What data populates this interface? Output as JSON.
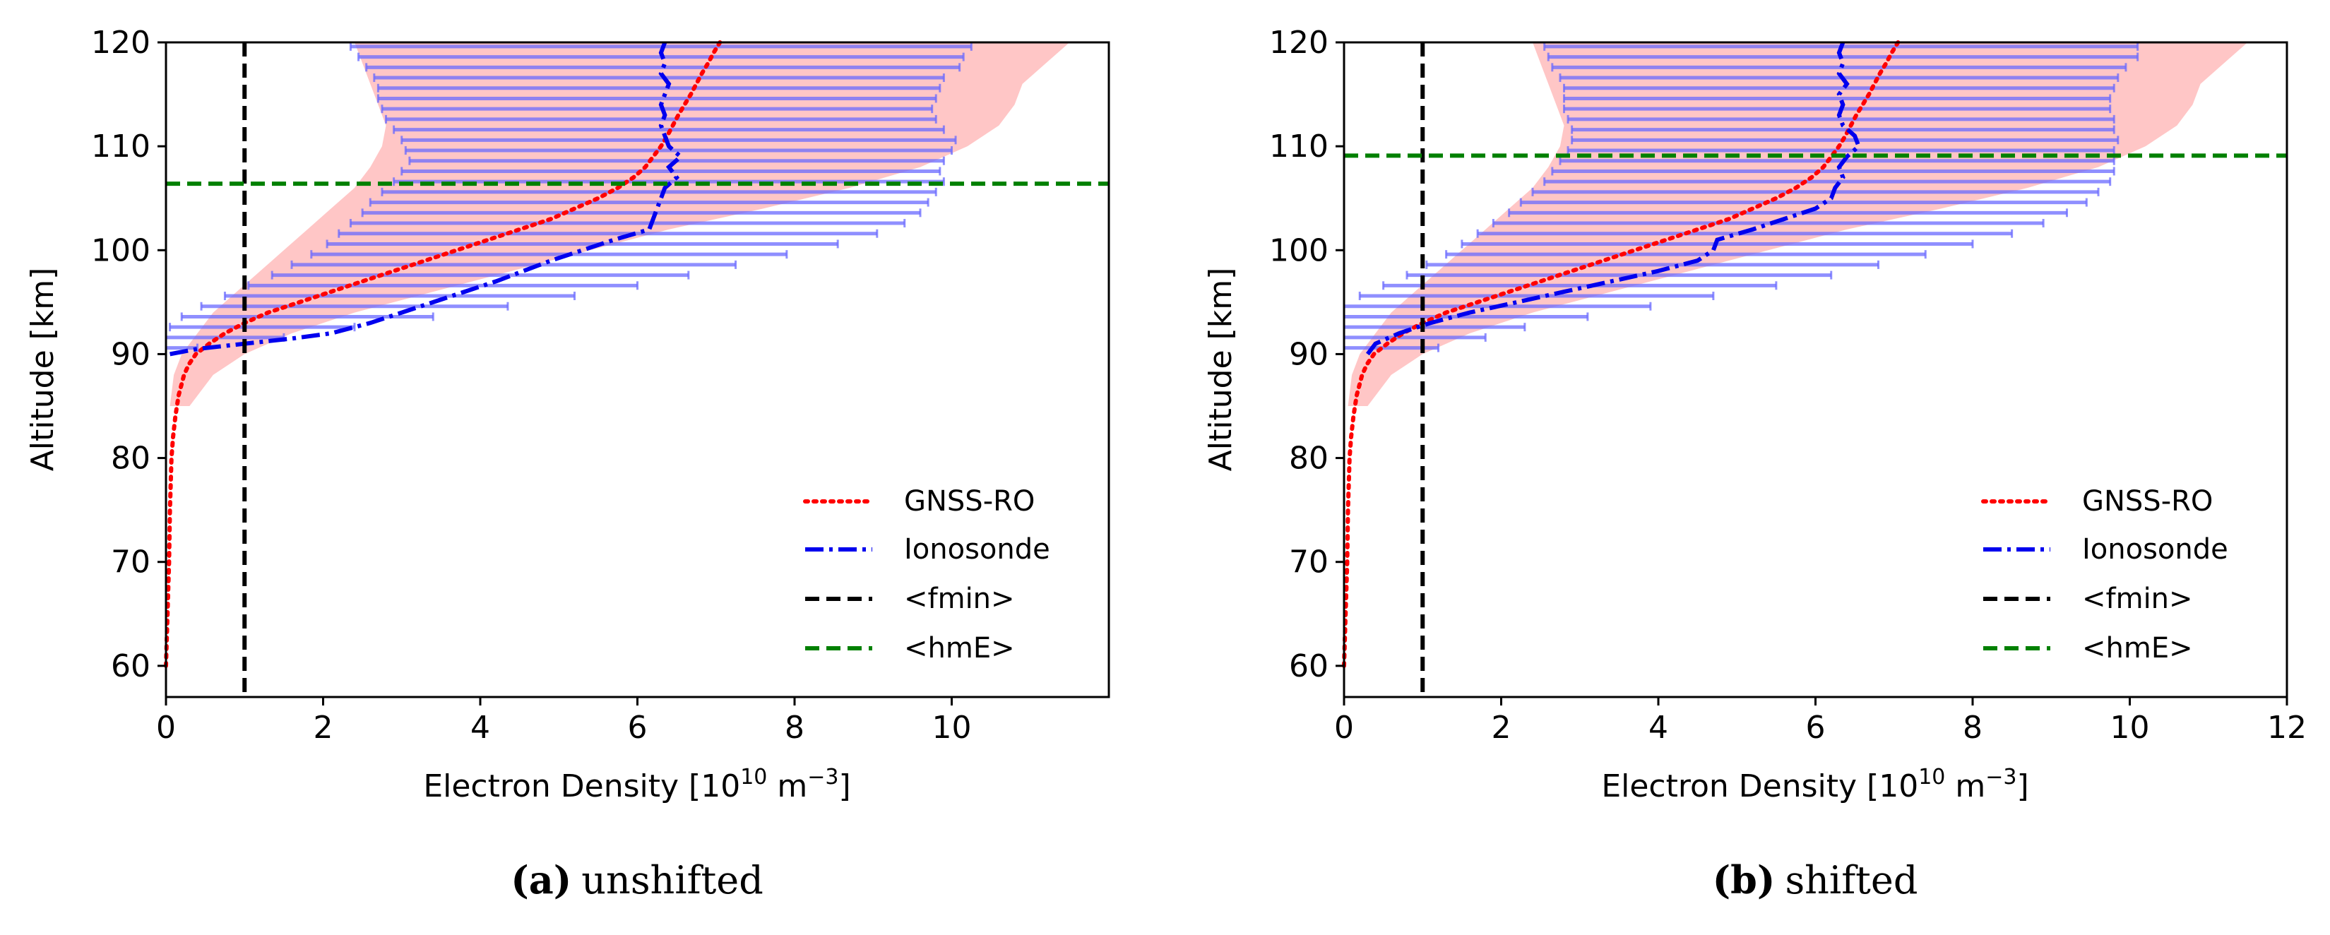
{
  "charts": [
    {
      "type": "line",
      "panel_label": "(a)",
      "caption": "unshifted",
      "xlabel": "Electron Density [10",
      "xlabel_sup": "10",
      "xlabel_unit": " m",
      "xlabel_unit_sup": "−3",
      "xlabel_close": "]",
      "ylabel": "Altitude [km]",
      "xlim": [
        0,
        12
      ],
      "ylim": [
        57,
        120
      ],
      "xticks": [
        0,
        2,
        4,
        6,
        8,
        10
      ],
      "yticks": [
        60,
        70,
        80,
        90,
        100,
        110,
        120
      ],
      "fmin": 1.0,
      "hmE": 106.4,
      "legend": [
        "GNSS-RO",
        "Ionosonde",
        "<fmin>",
        "<hmE>"
      ],
      "legend_position": "lower-right",
      "gnss_ro": {
        "y": [
          60,
          65,
          70,
          75,
          80,
          82,
          84,
          86,
          88,
          89,
          90,
          91,
          92,
          93,
          94,
          95,
          96,
          97,
          98,
          99,
          100,
          101,
          102,
          103,
          104,
          105,
          106,
          107,
          108,
          109,
          110,
          111,
          112,
          113,
          114,
          115,
          116,
          117,
          118,
          119,
          120
        ],
        "x": [
          0.0,
          0.02,
          0.04,
          0.05,
          0.07,
          0.09,
          0.12,
          0.16,
          0.23,
          0.29,
          0.38,
          0.55,
          0.75,
          1.0,
          1.3,
          1.7,
          2.1,
          2.5,
          2.9,
          3.3,
          3.7,
          4.1,
          4.5,
          4.9,
          5.2,
          5.5,
          5.75,
          5.95,
          6.1,
          6.2,
          6.3,
          6.38,
          6.45,
          6.52,
          6.6,
          6.68,
          6.75,
          6.82,
          6.9,
          6.97,
          7.05
        ]
      },
      "gnss_band": {
        "y": [
          85,
          88,
          90,
          92,
          94,
          96,
          98,
          100,
          102,
          104,
          106,
          108,
          110,
          112,
          114,
          116,
          118,
          120
        ],
        "low": [
          0.05,
          0.1,
          0.2,
          0.4,
          0.6,
          0.9,
          1.2,
          1.5,
          1.8,
          2.1,
          2.4,
          2.6,
          2.75,
          2.8,
          2.7,
          2.6,
          2.5,
          2.4
        ],
        "high": [
          0.3,
          0.6,
          1.0,
          1.6,
          2.4,
          3.4,
          4.4,
          5.4,
          6.4,
          7.6,
          8.7,
          9.6,
          10.2,
          10.6,
          10.8,
          10.9,
          11.2,
          11.5
        ]
      },
      "ionosonde": {
        "y": [
          90,
          90.5,
          91,
          91.5,
          92,
          93,
          94,
          95,
          96,
          97,
          98,
          99,
          100,
          101,
          102,
          103,
          104,
          105,
          106,
          107,
          108,
          109,
          110,
          111,
          112,
          113,
          114,
          115,
          116,
          117,
          118,
          119,
          120
        ],
        "x": [
          0.05,
          0.4,
          1.0,
          1.6,
          2.1,
          2.6,
          3.0,
          3.4,
          3.8,
          4.2,
          4.55,
          4.9,
          5.3,
          5.7,
          6.15,
          6.2,
          6.25,
          6.3,
          6.35,
          6.5,
          6.4,
          6.55,
          6.4,
          6.35,
          6.3,
          6.35,
          6.3,
          6.35,
          6.4,
          6.3,
          6.35,
          6.3,
          6.35
        ]
      },
      "ionosonde_bars": {
        "y": [
          90.6,
          91.6,
          92.6,
          93.6,
          94.6,
          95.6,
          96.6,
          97.6,
          98.6,
          99.6,
          100.6,
          101.6,
          102.6,
          103.6,
          104.6,
          105.6,
          106.6,
          107.6,
          108.6,
          109.6,
          110.6,
          111.6,
          112.6,
          113.6,
          114.6,
          115.6,
          116.6,
          117.6,
          118.6,
          119.6
        ],
        "low": [
          0.0,
          0.0,
          0.05,
          0.2,
          0.45,
          0.75,
          1.05,
          1.35,
          1.6,
          1.85,
          2.05,
          2.2,
          2.35,
          2.5,
          2.6,
          2.75,
          2.9,
          3.0,
          3.1,
          3.05,
          3.0,
          2.9,
          2.8,
          2.75,
          2.7,
          2.7,
          2.65,
          2.55,
          2.45,
          2.35
        ],
        "high": [
          0.4,
          1.5,
          2.4,
          3.4,
          4.35,
          5.2,
          6.0,
          6.65,
          7.25,
          7.9,
          8.55,
          9.05,
          9.4,
          9.6,
          9.7,
          9.8,
          9.9,
          9.85,
          9.9,
          10.0,
          10.05,
          9.9,
          9.8,
          9.75,
          9.8,
          9.85,
          9.9,
          10.1,
          10.15,
          10.25
        ]
      }
    },
    {
      "type": "line",
      "panel_label": "(b)",
      "caption": "shifted",
      "xlabel": "Electron Density [10",
      "xlabel_sup": "10",
      "xlabel_unit": " m",
      "xlabel_unit_sup": "−3",
      "xlabel_close": "]",
      "ylabel": "Altitude [km]",
      "xlim": [
        0,
        12
      ],
      "ylim": [
        57,
        120
      ],
      "xticks": [
        0,
        2,
        4,
        6,
        8,
        10,
        12
      ],
      "yticks": [
        60,
        70,
        80,
        90,
        100,
        110,
        120
      ],
      "fmin": 1.0,
      "hmE": 109.1,
      "legend": [
        "GNSS-RO",
        "Ionosonde",
        "<fmin>",
        "<hmE>"
      ],
      "legend_position": "lower-right",
      "gnss_ro": {
        "y": [
          60,
          65,
          70,
          75,
          80,
          82,
          84,
          86,
          88,
          89,
          90,
          91,
          92,
          93,
          94,
          95,
          96,
          97,
          98,
          99,
          100,
          101,
          102,
          103,
          104,
          105,
          106,
          107,
          108,
          109,
          110,
          111,
          112,
          113,
          114,
          115,
          116,
          117,
          118,
          119,
          120
        ],
        "x": [
          0.0,
          0.02,
          0.04,
          0.05,
          0.07,
          0.09,
          0.12,
          0.16,
          0.23,
          0.29,
          0.38,
          0.55,
          0.75,
          1.0,
          1.3,
          1.7,
          2.1,
          2.5,
          2.9,
          3.3,
          3.7,
          4.1,
          4.5,
          4.9,
          5.2,
          5.5,
          5.75,
          5.95,
          6.1,
          6.2,
          6.3,
          6.38,
          6.45,
          6.52,
          6.6,
          6.68,
          6.75,
          6.82,
          6.9,
          6.97,
          7.05
        ]
      },
      "gnss_band": {
        "y": [
          85,
          88,
          90,
          92,
          94,
          96,
          98,
          100,
          102,
          104,
          106,
          108,
          110,
          112,
          114,
          116,
          118,
          120
        ],
        "low": [
          0.05,
          0.1,
          0.2,
          0.4,
          0.6,
          0.9,
          1.2,
          1.5,
          1.8,
          2.1,
          2.4,
          2.6,
          2.75,
          2.8,
          2.7,
          2.6,
          2.5,
          2.4
        ],
        "high": [
          0.3,
          0.6,
          1.0,
          1.6,
          2.4,
          3.4,
          4.4,
          5.4,
          6.4,
          7.6,
          8.7,
          9.6,
          10.2,
          10.6,
          10.8,
          10.9,
          11.2,
          11.5
        ]
      },
      "ionosonde": {
        "y": [
          90,
          91,
          92,
          92.5,
          93,
          94,
          95,
          96,
          97,
          98,
          99,
          100,
          101,
          102,
          103,
          104,
          105,
          106,
          107,
          108,
          109,
          110,
          111,
          112,
          113,
          114,
          115,
          116,
          117,
          118,
          119,
          120
        ],
        "x": [
          0.3,
          0.4,
          0.7,
          0.9,
          1.1,
          1.6,
          2.2,
          2.8,
          3.4,
          4.0,
          4.5,
          4.7,
          4.75,
          5.2,
          5.6,
          6.0,
          6.2,
          6.25,
          6.35,
          6.3,
          6.4,
          6.55,
          6.5,
          6.35,
          6.3,
          6.35,
          6.3,
          6.4,
          6.3,
          6.35,
          6.3,
          6.35
        ]
      },
      "ionosonde_bars": {
        "y": [
          90.6,
          91.6,
          92.6,
          93.6,
          94.6,
          95.6,
          96.6,
          97.6,
          98.6,
          99.6,
          100.6,
          101.6,
          102.6,
          103.6,
          104.6,
          105.6,
          106.6,
          107.6,
          108.6,
          109.6,
          110.6,
          111.6,
          112.6,
          113.6,
          114.6,
          115.6,
          116.6,
          117.6,
          118.6,
          119.6
        ],
        "low": [
          0.0,
          0.0,
          0.0,
          0.0,
          0.0,
          0.2,
          0.5,
          0.8,
          1.05,
          1.3,
          1.5,
          1.7,
          1.9,
          2.1,
          2.25,
          2.4,
          2.55,
          2.65,
          2.75,
          2.85,
          2.9,
          2.9,
          2.85,
          2.8,
          2.8,
          2.8,
          2.75,
          2.65,
          2.6,
          2.55
        ],
        "high": [
          1.2,
          1.8,
          2.3,
          3.1,
          3.9,
          4.7,
          5.5,
          6.2,
          6.8,
          7.4,
          8.0,
          8.5,
          8.9,
          9.2,
          9.45,
          9.6,
          9.75,
          9.8,
          9.8,
          9.8,
          9.85,
          9.8,
          9.8,
          9.75,
          9.75,
          9.8,
          9.85,
          9.95,
          10.1,
          10.1
        ]
      }
    }
  ],
  "colors": {
    "gnss_line": "#ff0000",
    "gnss_band": "#ffb3b3",
    "ionosonde_line": "#0000ee",
    "ionosonde_bar": "#6a6aff",
    "fmin_line": "#000000",
    "hmE_line": "#008000"
  }
}
